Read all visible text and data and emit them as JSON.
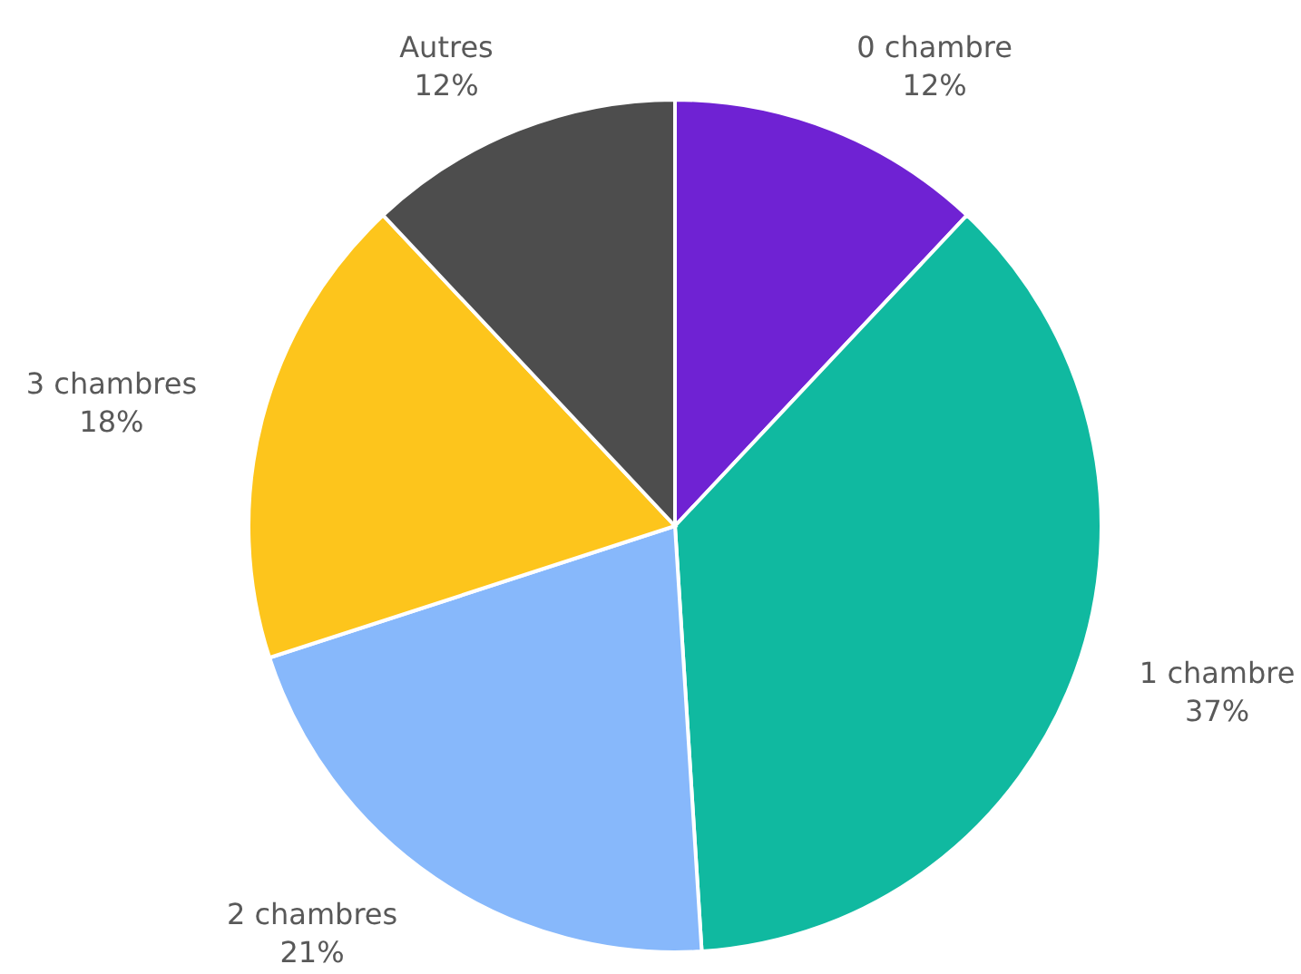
{
  "chart_data": {
    "type": "pie",
    "categories": [
      "0 chambre",
      "1 chambre",
      "2 chambres",
      "3 chambres",
      "Autres"
    ],
    "values": [
      12,
      37,
      21,
      18,
      12
    ],
    "value_labels": [
      "12%",
      "37%",
      "21%",
      "18%",
      "12%"
    ],
    "colors": [
      "#6f22d3",
      "#10b9a0",
      "#87b8fb",
      "#fdc51c",
      "#4d4d4d"
    ]
  }
}
